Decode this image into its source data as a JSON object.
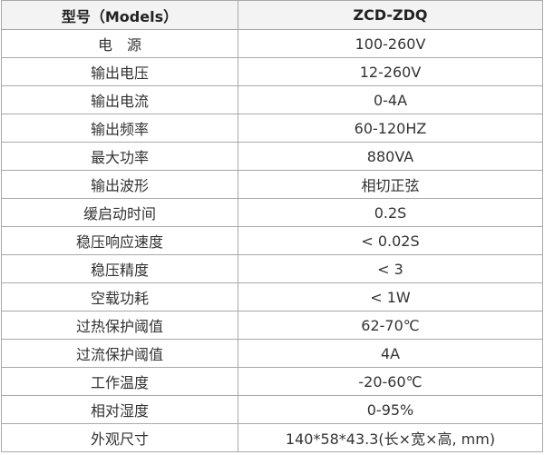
{
  "table": {
    "header": [
      "型号（Models）",
      "ZCD-ZDQ"
    ],
    "rows": [
      [
        "电　源",
        "100-260V"
      ],
      [
        "输出电压",
        "12-260V"
      ],
      [
        "输出电流",
        "0-4A"
      ],
      [
        "输出频率",
        "60-120HZ"
      ],
      [
        "最大功率",
        "880VA"
      ],
      [
        "输出波形",
        "相切正弦"
      ],
      [
        "缓启动时间",
        "0.2S"
      ],
      [
        "稳压响应速度",
        "< 0.02S"
      ],
      [
        "稳压精度",
        "< 3"
      ],
      [
        "空载功耗",
        "< 1W"
      ],
      [
        "过热保护阈值",
        "62-70℃"
      ],
      [
        "过流保护阈值",
        "4A"
      ],
      [
        "工作温度",
        "-20-60℃"
      ],
      [
        "相对湿度",
        "0-95%"
      ],
      [
        "外观尺寸",
        "140*58*43.3(长×宽×高, mm)"
      ]
    ]
  }
}
